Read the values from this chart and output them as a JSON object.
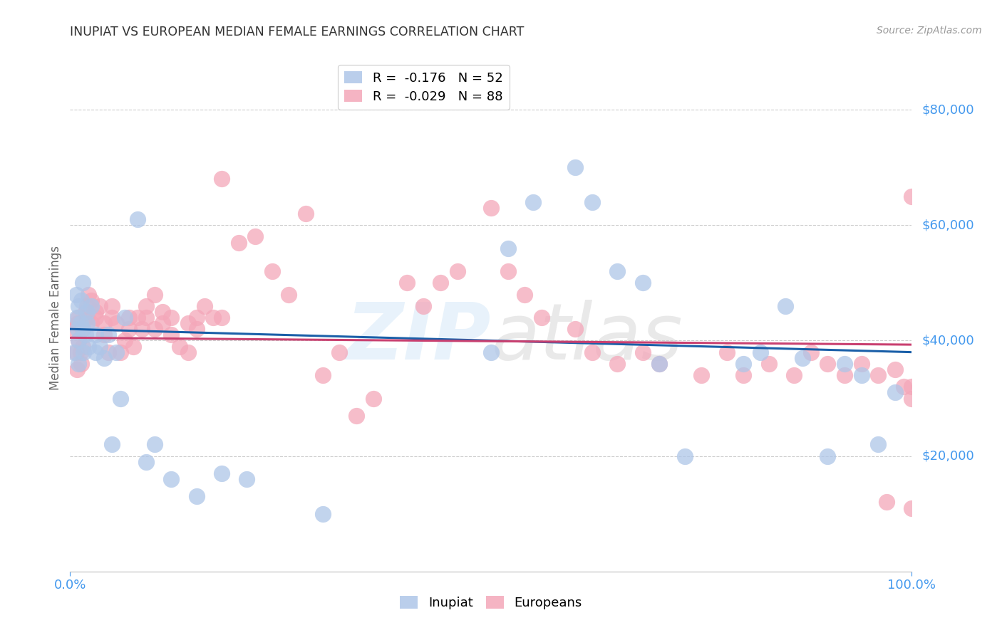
{
  "title": "INUPIAT VS EUROPEAN MEDIAN FEMALE EARNINGS CORRELATION CHART",
  "source": "Source: ZipAtlas.com",
  "ylabel": "Median Female Earnings",
  "yticks": [
    20000,
    40000,
    60000,
    80000
  ],
  "ytick_labels": [
    "$20,000",
    "$40,000",
    "$60,000",
    "$80,000"
  ],
  "ymin": 0,
  "ymax": 88000,
  "xmin": 0.0,
  "xmax": 1.0,
  "inupiat_R": -0.176,
  "inupiat_N": 52,
  "european_R": -0.029,
  "european_N": 88,
  "inupiat_color": "#aec6e8",
  "european_color": "#f4a7b9",
  "inupiat_line_color": "#1a5fa8",
  "european_line_color": "#c94070",
  "background_color": "#ffffff",
  "grid_color": "#cccccc",
  "axis_color": "#4499ee",
  "title_color": "#333333",
  "inupiat_intercept": 42000,
  "inupiat_slope": -4000,
  "european_intercept": 40500,
  "european_slope": -1200,
  "inupiat_x": [
    0.005,
    0.007,
    0.008,
    0.009,
    0.01,
    0.01,
    0.01,
    0.012,
    0.013,
    0.015,
    0.015,
    0.016,
    0.018,
    0.02,
    0.02,
    0.022,
    0.025,
    0.03,
    0.03,
    0.035,
    0.04,
    0.045,
    0.05,
    0.055,
    0.06,
    0.065,
    0.08,
    0.09,
    0.1,
    0.12,
    0.15,
    0.18,
    0.21,
    0.3,
    0.5,
    0.52,
    0.55,
    0.6,
    0.62,
    0.65,
    0.68,
    0.7,
    0.73,
    0.8,
    0.82,
    0.85,
    0.87,
    0.9,
    0.92,
    0.94,
    0.96,
    0.98
  ],
  "inupiat_y": [
    38000,
    48000,
    44000,
    42000,
    46000,
    40000,
    36000,
    43000,
    47000,
    42000,
    50000,
    38000,
    41000,
    45000,
    43000,
    39000,
    46000,
    38000,
    41000,
    39000,
    37000,
    41000,
    22000,
    38000,
    30000,
    44000,
    61000,
    19000,
    22000,
    16000,
    13000,
    17000,
    16000,
    10000,
    38000,
    56000,
    64000,
    70000,
    64000,
    52000,
    50000,
    36000,
    20000,
    36000,
    38000,
    46000,
    37000,
    20000,
    36000,
    34000,
    22000,
    31000
  ],
  "european_x": [
    0.005,
    0.007,
    0.008,
    0.009,
    0.01,
    0.01,
    0.012,
    0.013,
    0.015,
    0.015,
    0.018,
    0.02,
    0.02,
    0.022,
    0.025,
    0.025,
    0.03,
    0.03,
    0.035,
    0.04,
    0.04,
    0.045,
    0.05,
    0.05,
    0.055,
    0.06,
    0.065,
    0.07,
    0.07,
    0.075,
    0.08,
    0.085,
    0.09,
    0.09,
    0.1,
    0.1,
    0.11,
    0.11,
    0.12,
    0.12,
    0.13,
    0.14,
    0.14,
    0.15,
    0.15,
    0.16,
    0.17,
    0.18,
    0.18,
    0.2,
    0.22,
    0.24,
    0.26,
    0.28,
    0.3,
    0.32,
    0.34,
    0.36,
    0.4,
    0.42,
    0.44,
    0.46,
    0.5,
    0.52,
    0.54,
    0.56,
    0.6,
    0.62,
    0.65,
    0.68,
    0.7,
    0.75,
    0.78,
    0.8,
    0.83,
    0.86,
    0.88,
    0.9,
    0.92,
    0.94,
    0.96,
    0.97,
    0.98,
    0.99,
    1.0,
    1.0,
    1.0,
    1.0
  ],
  "european_y": [
    42000,
    38000,
    35000,
    43000,
    40000,
    44000,
    38000,
    36000,
    42000,
    39000,
    45000,
    44000,
    46000,
    48000,
    43000,
    47000,
    44000,
    45000,
    46000,
    43000,
    41000,
    38000,
    44000,
    46000,
    43000,
    38000,
    40000,
    44000,
    42000,
    39000,
    44000,
    42000,
    46000,
    44000,
    48000,
    42000,
    45000,
    43000,
    44000,
    41000,
    39000,
    43000,
    38000,
    42000,
    44000,
    46000,
    44000,
    68000,
    44000,
    57000,
    58000,
    52000,
    48000,
    62000,
    34000,
    38000,
    27000,
    30000,
    50000,
    46000,
    50000,
    52000,
    63000,
    52000,
    48000,
    44000,
    42000,
    38000,
    36000,
    38000,
    36000,
    34000,
    38000,
    34000,
    36000,
    34000,
    38000,
    36000,
    34000,
    36000,
    34000,
    12000,
    35000,
    32000,
    32000,
    30000,
    65000,
    11000
  ]
}
